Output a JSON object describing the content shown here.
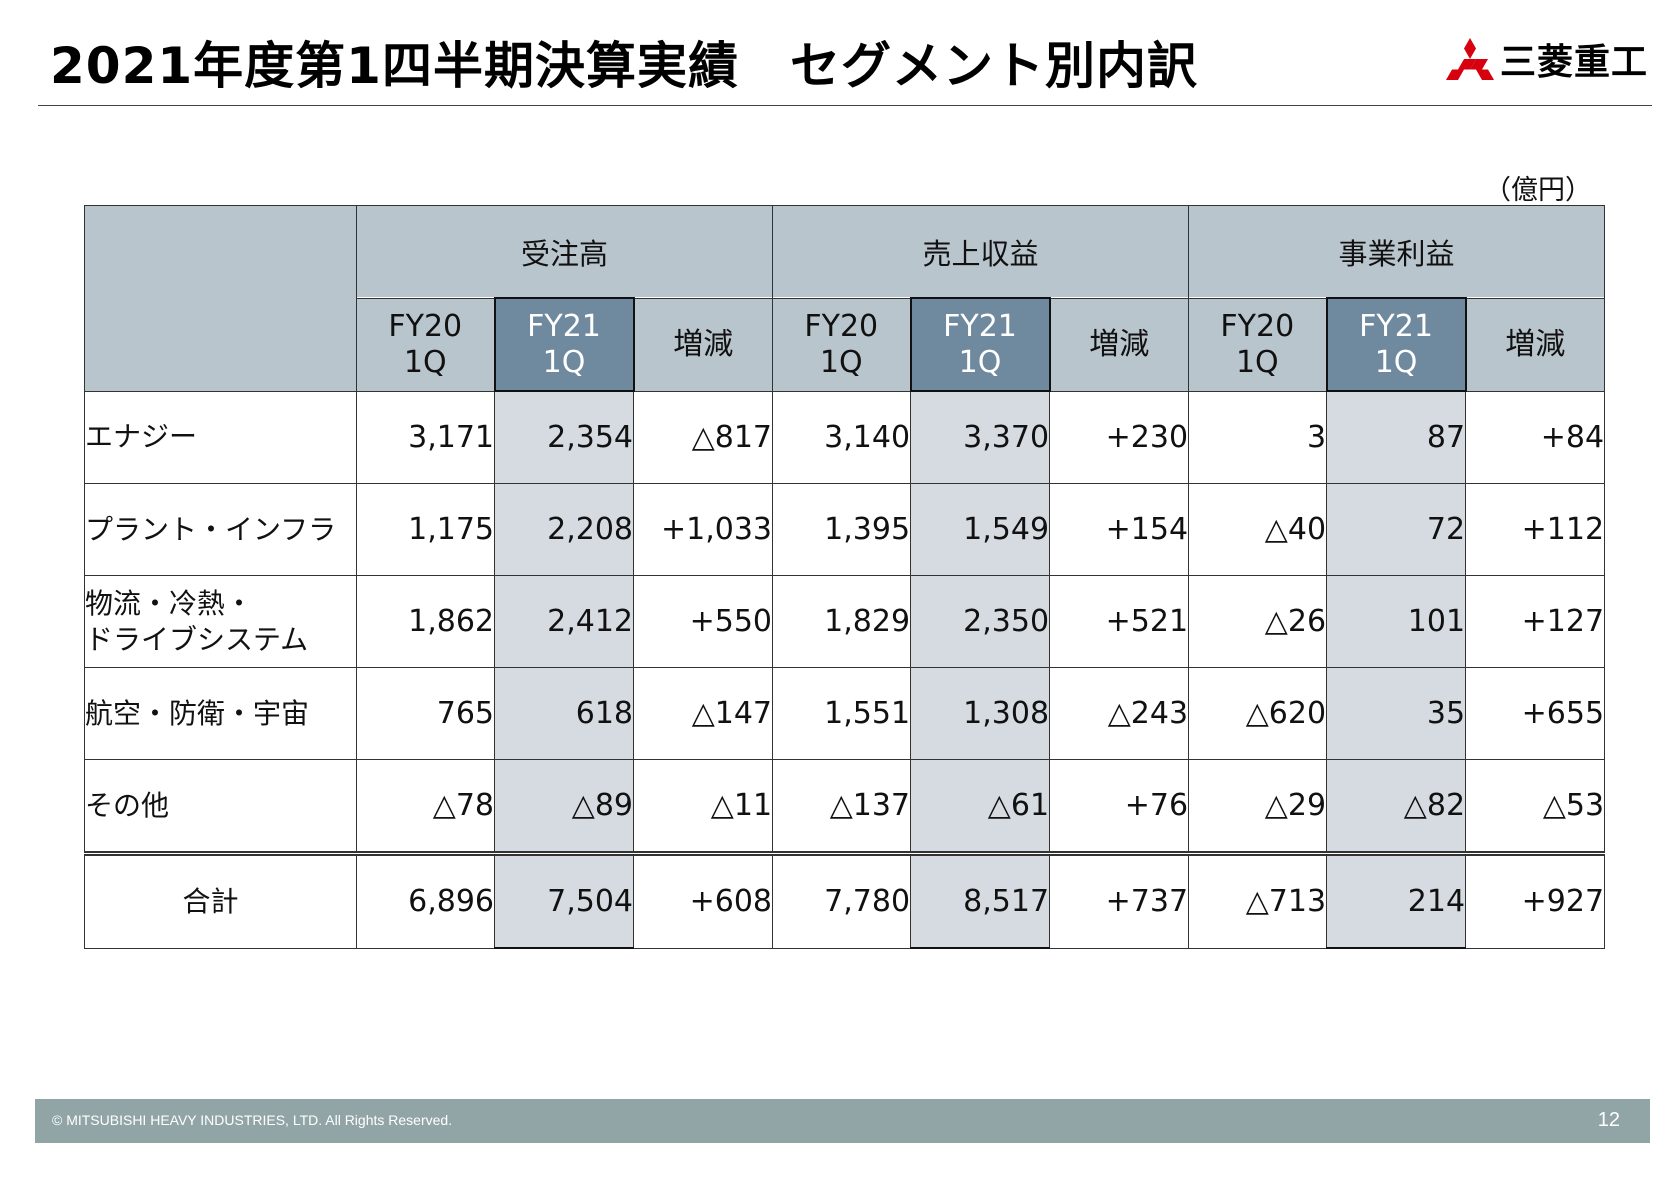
{
  "title": "2021年度第1四半期決算実績　セグメント別内訳",
  "brand": {
    "name": "三菱重工",
    "color": "#d7000f"
  },
  "unit": "（億円）",
  "groups": [
    "受注高",
    "売上収益",
    "事業利益"
  ],
  "columns": [
    {
      "fy": "FY20",
      "q": "1Q"
    },
    {
      "fy": "FY21",
      "q": "1Q"
    },
    {
      "change": "増減"
    }
  ],
  "rows": [
    {
      "label": [
        "エナジー"
      ],
      "values": [
        "3,171",
        "2,354",
        "△817",
        "3,140",
        "3,370",
        "+230",
        "3",
        "87",
        "+84"
      ]
    },
    {
      "label": [
        "プラント・インフラ"
      ],
      "values": [
        "1,175",
        "2,208",
        "+1,033",
        "1,395",
        "1,549",
        "+154",
        "△40",
        "72",
        "+112"
      ]
    },
    {
      "label": [
        "物流・冷熱・",
        "ドライブシステム"
      ],
      "values": [
        "1,862",
        "2,412",
        "+550",
        "1,829",
        "2,350",
        "+521",
        "△26",
        "101",
        "+127"
      ]
    },
    {
      "label": [
        "航空・防衛・宇宙"
      ],
      "values": [
        "765",
        "618",
        "△147",
        "1,551",
        "1,308",
        "△243",
        "△620",
        "35",
        "+655"
      ]
    },
    {
      "label": [
        "その他"
      ],
      "values": [
        "△78",
        "△89",
        "△11",
        "△137",
        "△61",
        "+76",
        "△29",
        "△82",
        "△53"
      ]
    }
  ],
  "total": {
    "label": "合計",
    "values": [
      "6,896",
      "7,504",
      "+608",
      "7,780",
      "8,517",
      "+737",
      "△713",
      "214",
      "+927"
    ]
  },
  "footer": {
    "copyright": "© MITSUBISHI HEAVY INDUSTRIES, LTD.  All Rights Reserved.",
    "page": "12"
  }
}
